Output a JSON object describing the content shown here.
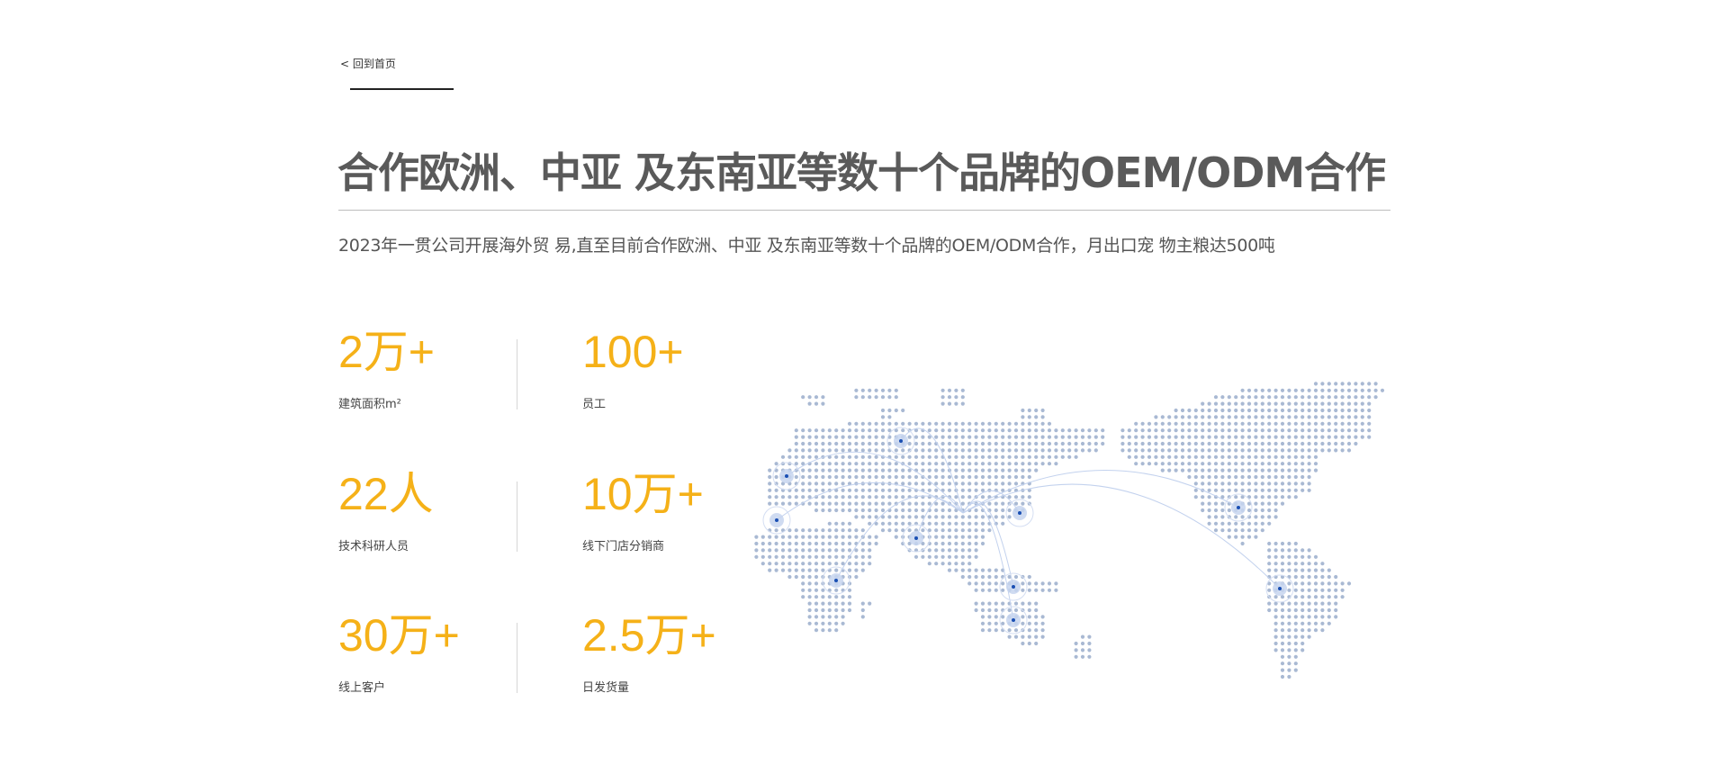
{
  "nav": {
    "back_label": "< 回到首页"
  },
  "header": {
    "title": "合作欧洲、中亚 及东南亚等数十个品牌的OEM/ODM合作",
    "subtitle": "2023年一贯公司开展海外贸 易,直至目前合作欧洲、中亚 及东南亚等数十个品牌的OEM/ODM合作，月出口宠 物主粮达500吨"
  },
  "stats": [
    {
      "value": "2万+",
      "label": "建筑面积m²"
    },
    {
      "value": "100+",
      "label": "员工"
    },
    {
      "value": "22人",
      "label": "技术科研人员"
    },
    {
      "value": "10万+",
      "label": "线下门店分销商"
    },
    {
      "value": "30万+",
      "label": "线上客户"
    },
    {
      "value": "2.5万+",
      "label": "日发货量"
    }
  ],
  "colors": {
    "accent": "#f5b118",
    "map_dot": "#a9b9d3",
    "marker": "#1a4fb3",
    "title": "#5a5a5a"
  }
}
